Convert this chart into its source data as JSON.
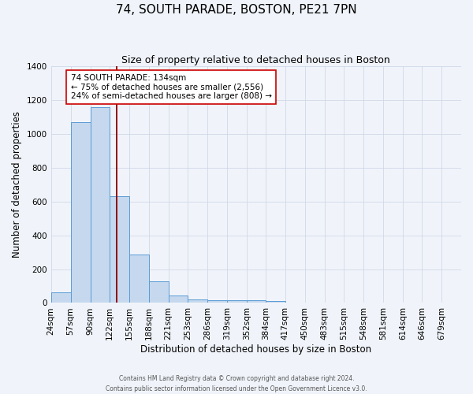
{
  "title": "74, SOUTH PARADE, BOSTON, PE21 7PN",
  "subtitle": "Size of property relative to detached houses in Boston",
  "xlabel": "Distribution of detached houses by size in Boston",
  "ylabel": "Number of detached properties",
  "footer_line1": "Contains HM Land Registry data © Crown copyright and database right 2024.",
  "footer_line2": "Contains public sector information licensed under the Open Government Licence v3.0.",
  "bin_edges": [
    24,
    57,
    90,
    122,
    155,
    188,
    221,
    253,
    286,
    319,
    352,
    384,
    417,
    450,
    483,
    515,
    548,
    581,
    614,
    646,
    679,
    712
  ],
  "bin_labels": [
    "24sqm",
    "57sqm",
    "90sqm",
    "122sqm",
    "155sqm",
    "188sqm",
    "221sqm",
    "253sqm",
    "286sqm",
    "319sqm",
    "352sqm",
    "384sqm",
    "417sqm",
    "450sqm",
    "483sqm",
    "515sqm",
    "548sqm",
    "581sqm",
    "614sqm",
    "646sqm",
    "679sqm"
  ],
  "counts": [
    65,
    1070,
    1160,
    630,
    285,
    130,
    45,
    20,
    15,
    18,
    15,
    10,
    0,
    0,
    0,
    0,
    0,
    0,
    0,
    0,
    0
  ],
  "bar_color": "#c5d8ee",
  "bar_edge_color": "#5b9bd5",
  "property_line_x": 134,
  "property_line_color": "#8b0000",
  "annotation_text": "74 SOUTH PARADE: 134sqm\n← 75% of detached houses are smaller (2,556)\n24% of semi-detached houses are larger (808) →",
  "annotation_box_color": "#ffffff",
  "annotation_box_edge_color": "#cc0000",
  "ylim": [
    0,
    1400
  ],
  "yticks": [
    0,
    200,
    400,
    600,
    800,
    1000,
    1200,
    1400
  ],
  "bg_color": "#f0f4fa",
  "grid_color": "#d0d8e8",
  "title_fontsize": 11,
  "subtitle_fontsize": 9,
  "axis_label_fontsize": 8.5,
  "tick_fontsize": 7.5,
  "annotation_fontsize": 7.5
}
